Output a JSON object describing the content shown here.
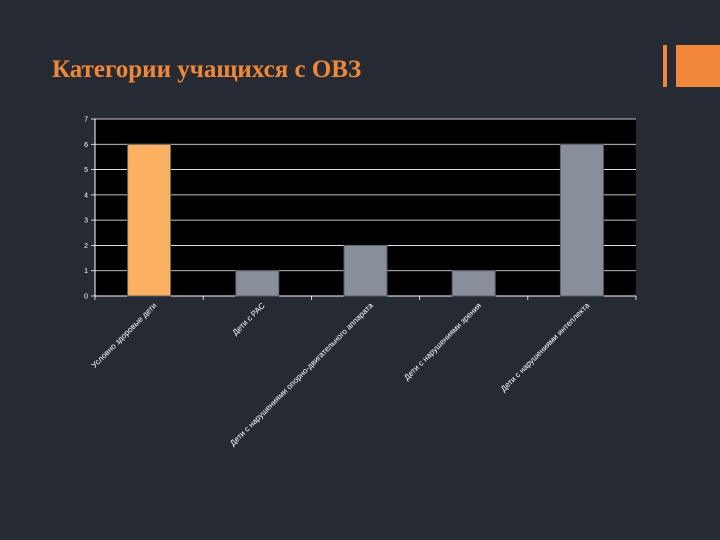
{
  "slide": {
    "title": "Категории учащихся с ОВЗ"
  },
  "colors": {
    "background": "#262b33",
    "accent": "#f0883a",
    "plot_area": "#000000",
    "bar_highlight": "#fbb062",
    "bar_default": "#888e9a",
    "gridline": "#ffffff"
  },
  "chart_data": {
    "type": "bar",
    "categories": [
      "Условно здоровые дети",
      "Дети с РАС",
      "Дети с нарушениями опорно-двигательного аппарата",
      "Дети с нарушениями зрения",
      "Дети с нарушениями интеллекта"
    ],
    "values": [
      6,
      1,
      2,
      1,
      6
    ],
    "ylim": [
      0,
      7
    ],
    "yticks": [
      0,
      1,
      2,
      3,
      4,
      5,
      6,
      7
    ],
    "grid": true,
    "legend": "none",
    "highlight_index": 0
  }
}
